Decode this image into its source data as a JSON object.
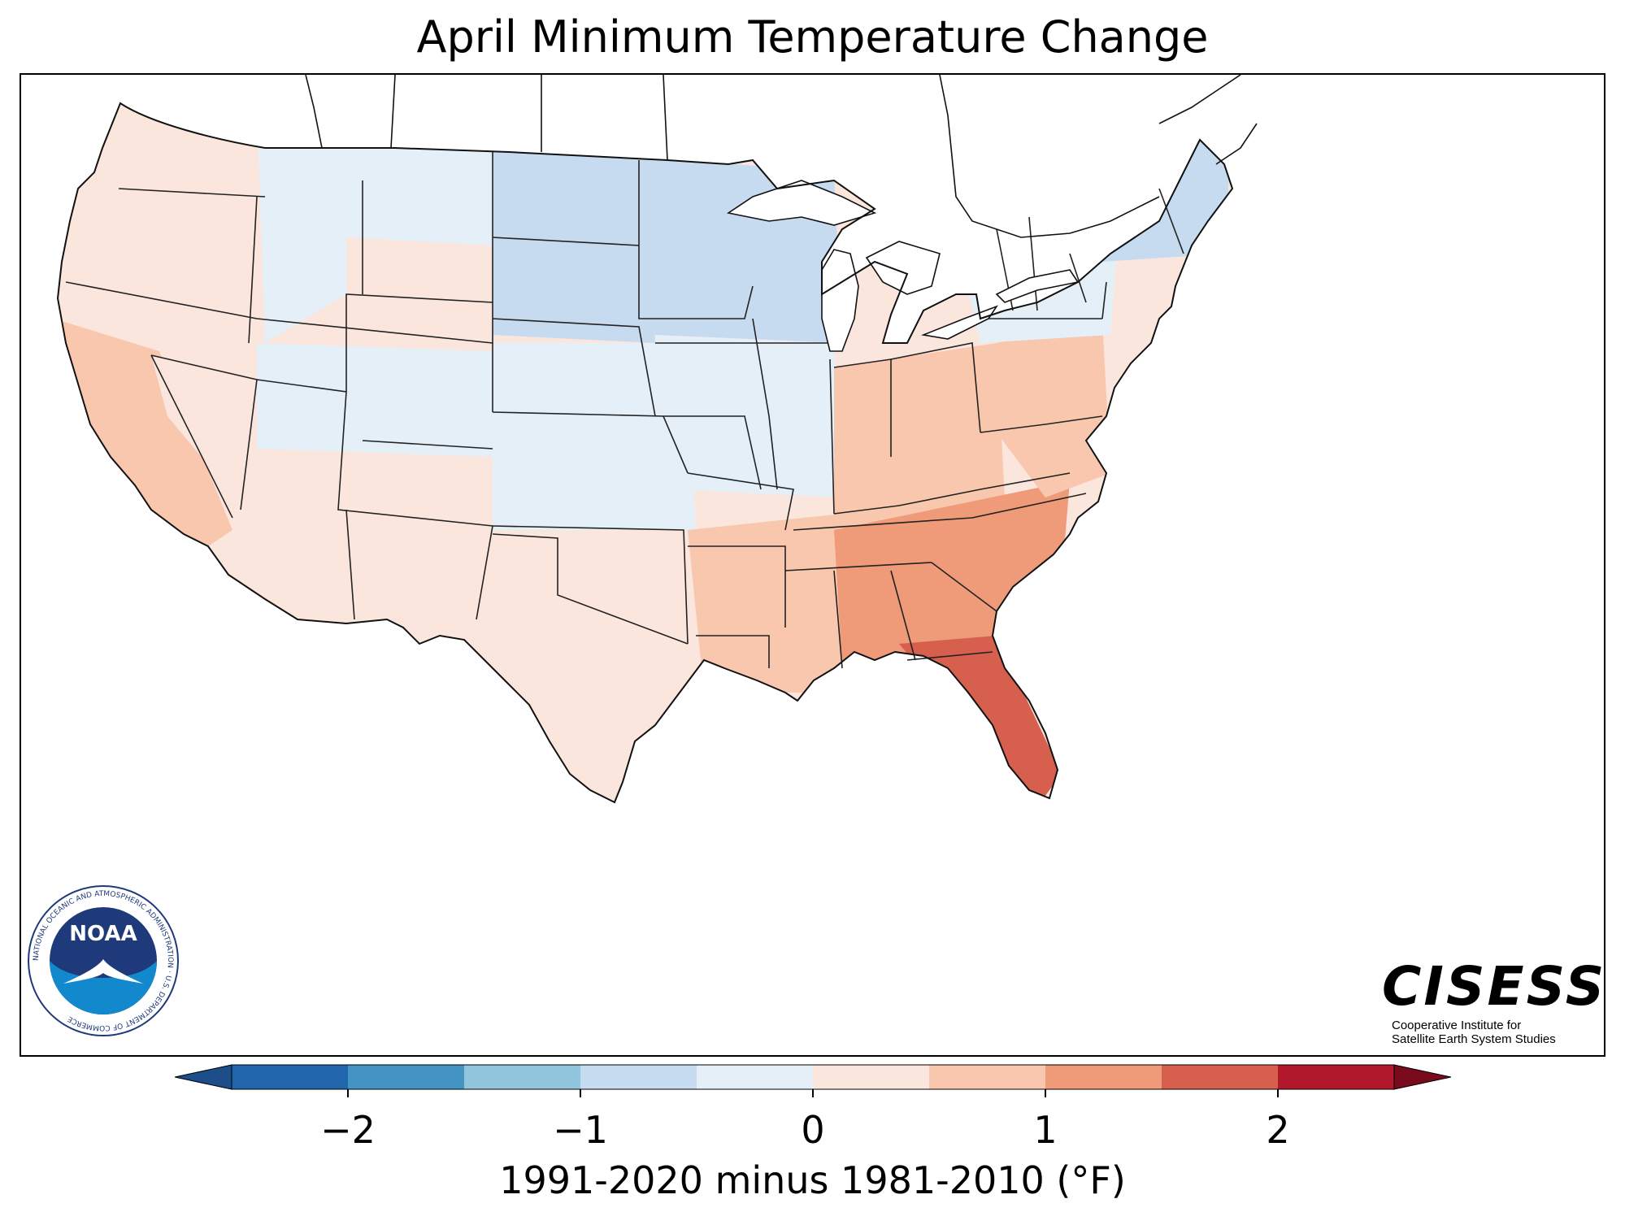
{
  "title": "April Minimum Temperature Change",
  "colorbar": {
    "label": "1991-2020 minus 1981-2010 (°F)",
    "ticks": [
      {
        "value": -2,
        "label": "−2"
      },
      {
        "value": -1,
        "label": "−1"
      },
      {
        "value": 0,
        "label": "0"
      },
      {
        "value": 1,
        "label": "1"
      },
      {
        "value": 2,
        "label": "2"
      }
    ],
    "min": -2.5,
    "max": 2.5,
    "step": 0.5,
    "bins": [
      "#2166ac",
      "#4393c3",
      "#92c5de",
      "#c6dbef",
      "#e5eff7",
      "#fbe6de",
      "#f9c7ae",
      "#ef9a78",
      "#d6604d",
      "#b2182b"
    ],
    "under_color": "#1d4e89",
    "over_color": "#7a0b1c",
    "extend": "both"
  },
  "logos": {
    "noaa": {
      "name": "NOAA",
      "ring_text": "NATIONAL OCEANIC AND ATMOSPHERIC ADMINISTRATION · U.S. DEPARTMENT OF COMMERCE"
    },
    "cisess": {
      "name": "CISESS",
      "line1": "Cooperative Institute for",
      "line2": "Satellite Earth System Studies"
    }
  },
  "map": {
    "region": "Contiguous United States",
    "regional_anomaly_classes": [
      {
        "region": "Pacific Northwest",
        "value": 0.25
      },
      {
        "region": "California coast",
        "value": 0.75
      },
      {
        "region": "Nevada / Great Basin",
        "value": 0.25
      },
      {
        "region": "Idaho / western Montana",
        "value": -0.25
      },
      {
        "region": "Wyoming",
        "value": 0.25
      },
      {
        "region": "Colorado / Utah",
        "value": -0.25
      },
      {
        "region": "Arizona / New Mexico",
        "value": 0.25
      },
      {
        "region": "Northern Plains (ND/SD)",
        "value": -0.75
      },
      {
        "region": "Minnesota / Wisconsin",
        "value": -0.75
      },
      {
        "region": "Nebraska / Kansas",
        "value": -0.25
      },
      {
        "region": "Texas",
        "value": 0.25
      },
      {
        "region": "Iowa / Illinois",
        "value": -0.25
      },
      {
        "region": "Ohio Valley",
        "value": 0.75
      },
      {
        "region": "Lower Mississippi Valley",
        "value": 0.75
      },
      {
        "region": "Southeast (GA/SC/AL)",
        "value": 1.25
      },
      {
        "region": "Florida peninsula",
        "value": 1.75
      },
      {
        "region": "Mid-Atlantic",
        "value": 0.75
      },
      {
        "region": "New York / Great Lakes east",
        "value": -0.25
      },
      {
        "region": "Northern New England",
        "value": -0.75
      }
    ]
  }
}
